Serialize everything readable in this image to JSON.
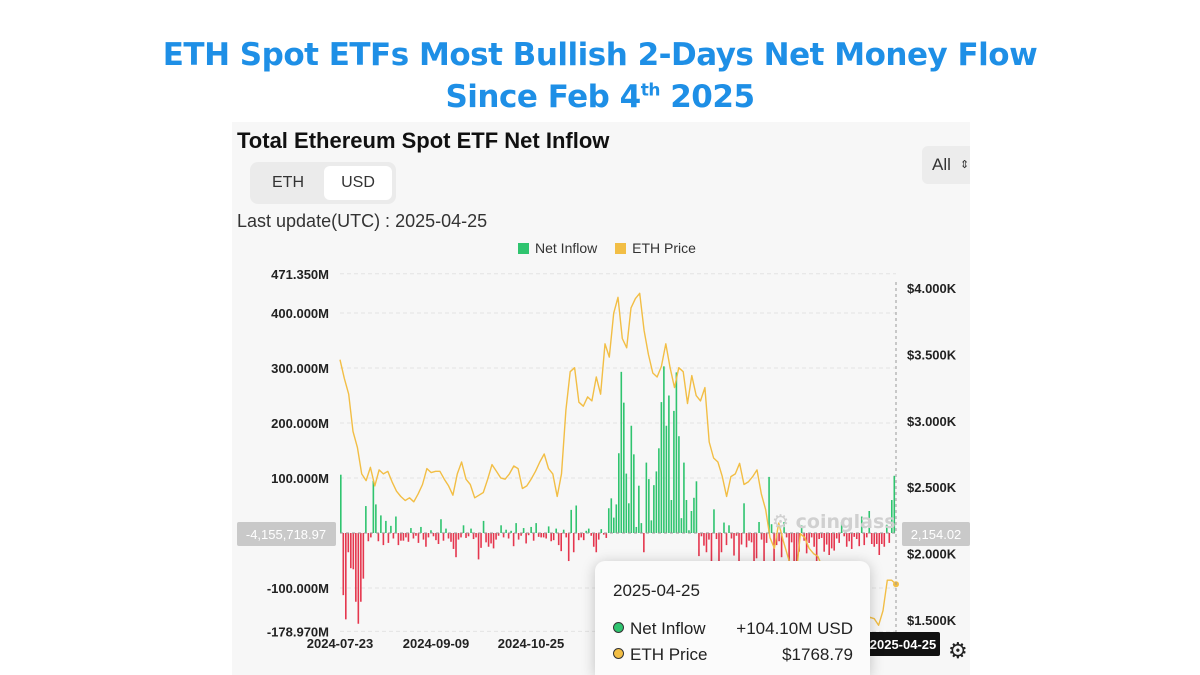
{
  "headline": {
    "line1": "ETH Spot ETFs Most Bullish 2-Days Net Money Flow",
    "line2_main": "Since Feb 4",
    "line2_sup": "th",
    "line2_end": " 2025"
  },
  "panel": {
    "title": "Total Ethereum Spot ETF Net Inflow",
    "unit_tabs": [
      "ETH",
      "USD"
    ],
    "selected_unit": "USD",
    "range_select": "All",
    "last_update": "Last update(UTC) : 2025-04-25",
    "watermark": "coinglass",
    "crosshair_left_label": "-4,155,718.97",
    "crosshair_right_label": "2,154.02",
    "crosshair_date_label": "2025-04-25"
  },
  "tooltip": {
    "date": "2025-04-25",
    "rows": [
      {
        "name": "Net Inflow",
        "value": "+104.10M USD",
        "color": "#2fc46f"
      },
      {
        "name": "ETH Price",
        "value": "$1768.79",
        "color": "#f2be45"
      }
    ]
  },
  "colors": {
    "inflow": "#2fc46f",
    "outflow": "#e5364e",
    "price": "#f2be45",
    "headline": "#1e8fe6"
  },
  "chart_data": {
    "type": "bar",
    "legend": [
      "Net Inflow",
      "ETH Price"
    ],
    "legend_position": "top-center",
    "x_ticks": [
      "2024-07-23",
      "2024-09-09",
      "2024-10-25",
      "2025-04-25"
    ],
    "y_left_ticks": [
      "471.350M",
      "400.000M",
      "300.000M",
      "200.000M",
      "100.000M",
      "-100.000M",
      "-178.970M"
    ],
    "y_left_range": [
      -178.97,
      471.35
    ],
    "y_right_ticks": [
      "$4.000K",
      "$3.500K",
      "$3.000K",
      "$2.500K",
      "$2.000K",
      "$1.500K"
    ],
    "y_right_range": [
      1500,
      4000
    ],
    "grid": true,
    "series": [
      {
        "name": "Net Inflow",
        "unit": "M USD",
        "values": [
          106,
          -113,
          -157,
          -35,
          -64,
          -66,
          -125,
          -165,
          -125,
          -83,
          49,
          -15,
          -8,
          95,
          52,
          -15,
          32,
          -22,
          22,
          -18,
          13,
          -10,
          30,
          -22,
          -14,
          -14,
          -8,
          -16,
          9,
          -10,
          -5,
          -18,
          11,
          -12,
          -25,
          -8,
          5,
          -6,
          -13,
          -20,
          25,
          -14,
          8,
          -10,
          -16,
          -29,
          -44,
          -12,
          -8,
          14,
          -9,
          -6,
          8,
          -11,
          -8,
          -48,
          -27,
          22,
          -17,
          -25,
          -19,
          -28,
          -12,
          -5,
          14,
          -8,
          6,
          -10,
          4,
          -24,
          18,
          -12,
          -5,
          9,
          -19,
          -4,
          11,
          -14,
          18,
          -7,
          -8,
          -8,
          -10,
          12,
          -15,
          -13,
          8,
          -22,
          -33,
          6,
          -8,
          -51,
          42,
          -35,
          50,
          -13,
          -8,
          -13,
          4,
          8,
          -5,
          -25,
          -35,
          -12,
          7,
          -3,
          -9,
          45,
          63,
          28,
          52,
          145,
          293,
          237,
          108,
          54,
          195,
          143,
          11,
          86,
          18,
          -35,
          128,
          98,
          23,
          87,
          112,
          154,
          238,
          303,
          195,
          250,
          60,
          222,
          292,
          176,
          27,
          128,
          60,
          5,
          40,
          64,
          94,
          -42,
          -6,
          -23,
          -35,
          -12,
          -54,
          43,
          -11,
          -55,
          -35,
          19,
          -22,
          14,
          -10,
          -41,
          -5,
          -75,
          -21,
          54,
          -26,
          -14,
          -17,
          -58,
          -46,
          20,
          -12,
          -52,
          -18,
          102,
          16,
          -51,
          -22,
          -15,
          -44,
          20,
          -8,
          -55,
          -17,
          -90,
          -65,
          -34,
          14,
          -14,
          -37,
          -18,
          -8,
          -25,
          -57,
          -11,
          -9,
          -34,
          -21,
          -40,
          -28,
          -32,
          -10,
          -18,
          20,
          -6,
          -25,
          -15,
          -29,
          -7,
          -11,
          -24,
          30,
          -22,
          -8,
          40,
          -20,
          -25,
          -20,
          -40,
          -20,
          -25,
          15,
          -18,
          60,
          104
        ]
      },
      {
        "name": "ETH Price",
        "unit": "USD",
        "values": [
          3460,
          3320,
          3200,
          2920,
          2800,
          2600,
          2550,
          2650,
          2510,
          2630,
          2600,
          2620,
          2540,
          2470,
          2430,
          2400,
          2420,
          2390,
          2450,
          2520,
          2640,
          2610,
          2620,
          2620,
          2560,
          2510,
          2440,
          2600,
          2690,
          2560,
          2520,
          2420,
          2440,
          2460,
          2560,
          2670,
          2620,
          2570,
          2560,
          2600,
          2660,
          2640,
          2490,
          2510,
          2560,
          2620,
          2690,
          2750,
          2640,
          2600,
          2430,
          2600,
          3080,
          3370,
          3400,
          3140,
          3110,
          3180,
          3150,
          3330,
          3200,
          3580,
          3480,
          3810,
          3930,
          3620,
          3550,
          3850,
          3920,
          3960,
          3680,
          3500,
          3360,
          3330,
          3410,
          3580,
          3400,
          3250,
          3400,
          3370,
          3130,
          3340,
          3190,
          3150,
          3250,
          2840,
          2720,
          2690,
          2580,
          2430,
          2580,
          2600,
          2680,
          2520,
          2540,
          2580,
          2630,
          2450,
          2330,
          2120,
          2040,
          2230,
          2100,
          1990,
          1880,
          1830,
          2150,
          2120,
          2040,
          2000,
          1980,
          1900,
          1790,
          1640,
          1600,
          1570,
          1590,
          1600,
          1660,
          1580,
          1540,
          1470,
          1520,
          1510,
          1460,
          1570,
          1800,
          1800,
          1768.79
        ]
      }
    ]
  }
}
